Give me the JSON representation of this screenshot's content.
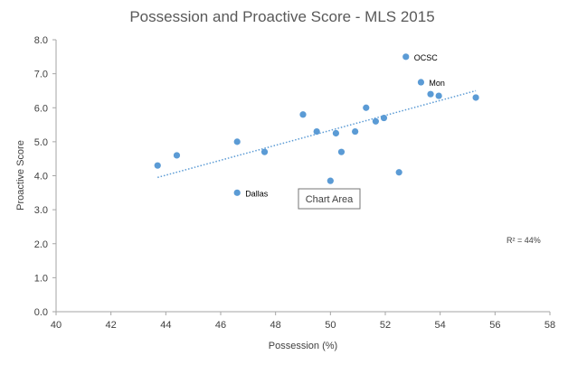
{
  "colors": {
    "marker": "#5B9BD5",
    "trendline": "#5B9BD5",
    "axis": "#A6A6A6",
    "text": "#404040"
  },
  "tooltip": {
    "text": "Chart Area"
  },
  "chart_data": {
    "type": "scatter",
    "title": "Possession and Proactive Score - MLS 2015",
    "xlabel": "Possession (%)",
    "ylabel": "Proactive Score",
    "xlim": [
      40,
      58
    ],
    "ylim": [
      0.0,
      8.0
    ],
    "x_ticks": [
      "40",
      "42",
      "44",
      "46",
      "48",
      "50",
      "52",
      "54",
      "56",
      "58"
    ],
    "y_ticks": [
      "0.0",
      "1.0",
      "2.0",
      "3.0",
      "4.0",
      "5.0",
      "6.0",
      "7.0",
      "8.0"
    ],
    "grid": false,
    "points": [
      {
        "x": 43.7,
        "y": 4.3
      },
      {
        "x": 44.4,
        "y": 4.6
      },
      {
        "x": 46.6,
        "y": 3.5,
        "label": "Dallas"
      },
      {
        "x": 46.6,
        "y": 5.0
      },
      {
        "x": 47.6,
        "y": 4.7
      },
      {
        "x": 49.0,
        "y": 5.8
      },
      {
        "x": 49.5,
        "y": 5.3
      },
      {
        "x": 50.0,
        "y": 3.85
      },
      {
        "x": 50.2,
        "y": 5.25
      },
      {
        "x": 50.4,
        "y": 4.7
      },
      {
        "x": 50.9,
        "y": 5.3
      },
      {
        "x": 51.3,
        "y": 6.0
      },
      {
        "x": 51.65,
        "y": 5.6
      },
      {
        "x": 51.95,
        "y": 5.7
      },
      {
        "x": 52.5,
        "y": 4.1
      },
      {
        "x": 52.75,
        "y": 7.5,
        "label": "OCSC"
      },
      {
        "x": 53.3,
        "y": 6.75,
        "label": "Mon"
      },
      {
        "x": 53.65,
        "y": 6.4
      },
      {
        "x": 53.95,
        "y": 6.35
      },
      {
        "x": 55.3,
        "y": 6.3
      }
    ],
    "trendline": {
      "type": "linear",
      "style": "dotted",
      "x_start": 43.7,
      "y_start": 3.95,
      "x_end": 55.3,
      "y_end": 6.5
    },
    "annotations": [
      {
        "text": "R² = 44%"
      }
    ]
  }
}
